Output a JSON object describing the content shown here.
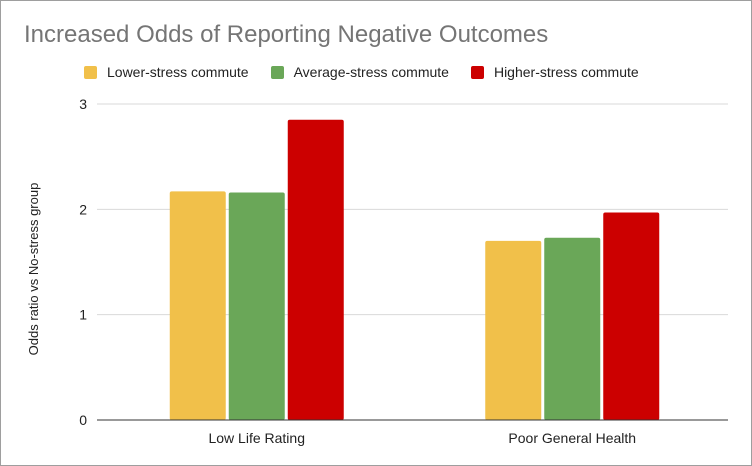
{
  "chart_data": {
    "type": "bar",
    "title": "Increased Odds of Reporting Negative Outcomes",
    "xlabel": "",
    "ylabel": "Odds ratio vs No-stress group",
    "categories": [
      "Low Life Rating",
      "Poor General Health"
    ],
    "series": [
      {
        "name": "Lower-stress commute",
        "color": "#f1c04a",
        "values": [
          2.17,
          1.7
        ]
      },
      {
        "name": "Average-stress commute",
        "color": "#6aa758",
        "values": [
          2.16,
          1.73
        ]
      },
      {
        "name": "Higher-stress commute",
        "color": "#cc0000",
        "values": [
          2.85,
          1.97
        ]
      }
    ],
    "ylim": [
      0,
      3
    ],
    "yticks": [
      0,
      1,
      2,
      3
    ],
    "grid": true,
    "legend_position": "top"
  }
}
